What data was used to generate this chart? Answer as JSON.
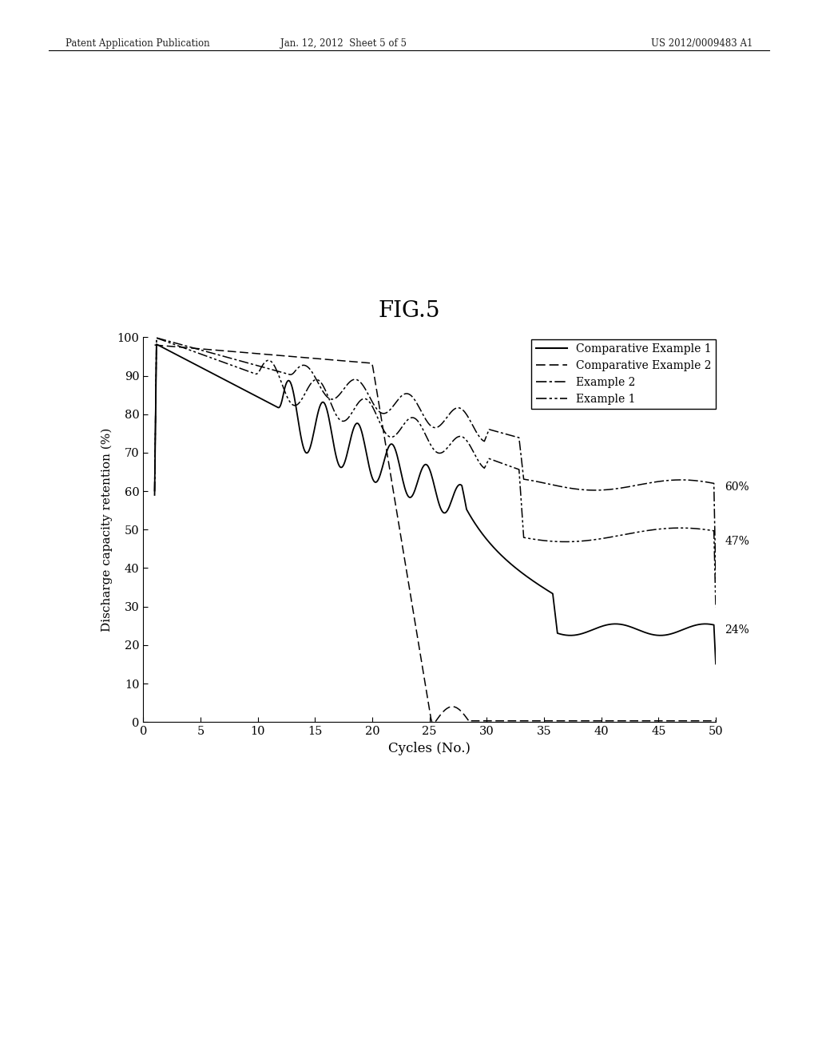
{
  "title": "FIG.5",
  "xlabel": "Cycles (No.)",
  "ylabel": "Discharge capacity retention (%)",
  "xlim": [
    0,
    50
  ],
  "ylim": [
    0,
    100
  ],
  "xticks": [
    0,
    5,
    10,
    15,
    20,
    25,
    30,
    35,
    40,
    45,
    50
  ],
  "yticks": [
    0,
    10,
    20,
    30,
    40,
    50,
    60,
    70,
    80,
    90,
    100
  ],
  "header_left": "Patent Application Publication",
  "header_mid": "Jan. 12, 2012  Sheet 5 of 5",
  "header_right": "US 2012/0009483 A1",
  "legend_labels": [
    "Comparative Example 1",
    "Comparative Example 2",
    "Example 2",
    "Example 1"
  ],
  "end_label_60": "60%",
  "end_label_47": "47%",
  "end_label_24": "24%",
  "background_color": "#ffffff"
}
